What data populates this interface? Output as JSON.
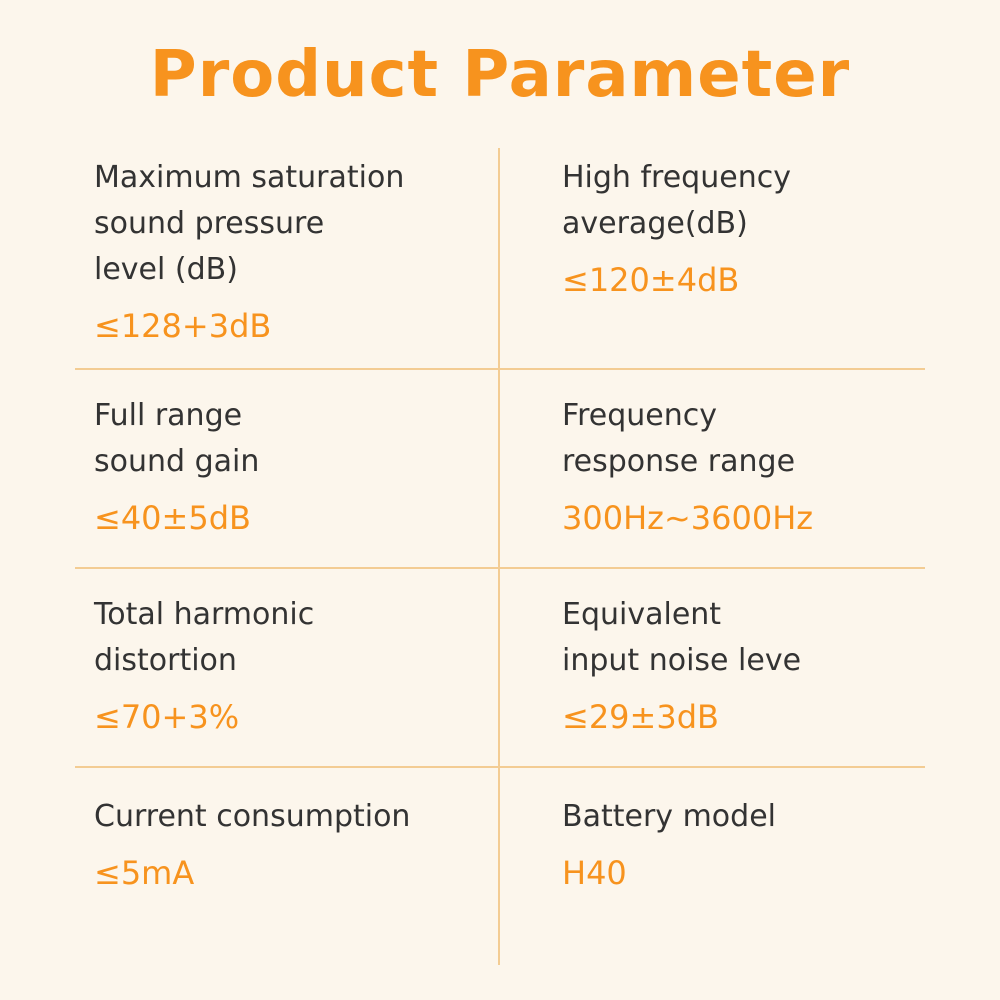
{
  "title": "Product Parameter",
  "colors": {
    "accent": "#f7931e",
    "background": "#fcf6ec",
    "divider": "#f3cc93",
    "text": "#333333"
  },
  "params": [
    {
      "label_lines": [
        "Maximum saturation",
        "sound pressure",
        "level (dB)"
      ],
      "value": "≤128+3dB"
    },
    {
      "label_lines": [
        "High frequency",
        "average(dB)"
      ],
      "value": "≤120±4dB"
    },
    {
      "label_lines": [
        "Full range",
        "sound gain"
      ],
      "value": "≤40±5dB"
    },
    {
      "label_lines": [
        "Frequency",
        "response range"
      ],
      "value": "300Hz~3600Hz"
    },
    {
      "label_lines": [
        "Total harmonic",
        "distortion"
      ],
      "value": "≤70+3%"
    },
    {
      "label_lines": [
        "Equivalent",
        "input noise leve"
      ],
      "value": "≤29±3dB"
    },
    {
      "label_lines": [
        "Current consumption"
      ],
      "value": "≤5mA"
    },
    {
      "label_lines": [
        "Battery model"
      ],
      "value": "H40"
    }
  ]
}
